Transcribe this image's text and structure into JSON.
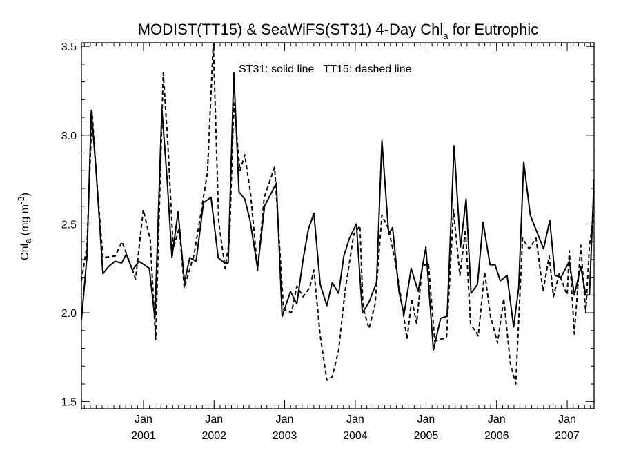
{
  "chart_data": {
    "type": "line",
    "title": {
      "main": "MODIST(TT15) & SeaWiFS(ST31) 4-Day Chl",
      "subscript": "a",
      "suffix": " for Eutrophic"
    },
    "ylabel": {
      "main": "Chl",
      "subscript": "a",
      "unit": " (mg m",
      "superscript": "-3",
      "close": ")"
    },
    "annotation": "ST31: solid line   TT15: dashed line",
    "ylim": [
      1.46,
      3.52
    ],
    "xlim": [
      "2000-02-15",
      "2007-05-20"
    ],
    "y_ticks": [
      {
        "value": 1.5,
        "label": "1.5"
      },
      {
        "value": 2.0,
        "label": "2.0"
      },
      {
        "value": 2.5,
        "label": "2.5"
      },
      {
        "value": 3.0,
        "label": "3.0"
      },
      {
        "value": 3.5,
        "label": "3.5"
      }
    ],
    "y_minor_step": 0.1,
    "x_ticks": [
      {
        "date": "2001-01-01",
        "label": "Jan",
        "year": "2001"
      },
      {
        "date": "2002-01-01",
        "label": "Jan",
        "year": "2002"
      },
      {
        "date": "2003-01-01",
        "label": "Jan",
        "year": "2003"
      },
      {
        "date": "2004-01-01",
        "label": "Jan",
        "year": "2004"
      },
      {
        "date": "2005-01-01",
        "label": "Jan",
        "year": "2005"
      },
      {
        "date": "2006-01-01",
        "label": "Jan",
        "year": "2006"
      },
      {
        "date": "2007-01-01",
        "label": "Jan",
        "year": "2007"
      }
    ],
    "series": [
      {
        "style": "solid",
        "points": [
          [
            "2000-02-15",
            1.96
          ],
          [
            "2000-03-15",
            2.32
          ],
          [
            "2000-04-06",
            3.14
          ],
          [
            "2000-05-01",
            2.8
          ],
          [
            "2000-06-05",
            2.22
          ],
          [
            "2000-07-04",
            2.26
          ],
          [
            "2000-08-07",
            2.29
          ],
          [
            "2000-09-10",
            2.28
          ],
          [
            "2000-10-04",
            2.33
          ],
          [
            "2000-11-05",
            2.24
          ],
          [
            "2000-12-09",
            2.29
          ],
          [
            "2001-01-31",
            2.25
          ],
          [
            "2001-03-01",
            1.97
          ],
          [
            "2001-04-06",
            3.15
          ],
          [
            "2001-05-04",
            2.74
          ],
          [
            "2001-05-28",
            2.31
          ],
          [
            "2001-06-29",
            2.57
          ],
          [
            "2001-08-01",
            2.17
          ],
          [
            "2001-08-28",
            2.31
          ],
          [
            "2001-09-30",
            2.29
          ],
          [
            "2001-11-07",
            2.62
          ],
          [
            "2001-12-16",
            2.65
          ],
          [
            "2002-01-22",
            2.31
          ],
          [
            "2002-02-24",
            2.28
          ],
          [
            "2002-03-15",
            2.28
          ],
          [
            "2002-04-13",
            3.35
          ],
          [
            "2002-05-10",
            2.68
          ],
          [
            "2002-06-09",
            2.64
          ],
          [
            "2002-07-06",
            2.52
          ],
          [
            "2002-08-14",
            2.25
          ],
          [
            "2002-09-19",
            2.6
          ],
          [
            "2002-11-19",
            2.73
          ],
          [
            "2002-12-19",
            1.98
          ],
          [
            "2003-01-31",
            2.12
          ],
          [
            "2003-03-05",
            2.05
          ],
          [
            "2003-04-06",
            2.3
          ],
          [
            "2003-05-04",
            2.47
          ],
          [
            "2003-06-01",
            2.56
          ],
          [
            "2003-07-04",
            2.16
          ],
          [
            "2003-08-07",
            2.04
          ],
          [
            "2003-09-04",
            2.17
          ],
          [
            "2003-10-07",
            2.11
          ],
          [
            "2003-11-03",
            2.32
          ],
          [
            "2003-12-02",
            2.42
          ],
          [
            "2004-01-07",
            2.5
          ],
          [
            "2004-02-07",
            2.0
          ],
          [
            "2004-03-12",
            2.06
          ],
          [
            "2004-04-20",
            2.17
          ],
          [
            "2004-05-18",
            2.97
          ],
          [
            "2004-06-22",
            2.44
          ],
          [
            "2004-07-12",
            2.48
          ],
          [
            "2004-08-14",
            2.12
          ],
          [
            "2004-09-09",
            1.99
          ],
          [
            "2004-10-16",
            2.25
          ],
          [
            "2004-11-21",
            2.12
          ],
          [
            "2004-12-31",
            2.37
          ],
          [
            "2005-02-08",
            1.79
          ],
          [
            "2005-03-18",
            1.97
          ],
          [
            "2005-04-20",
            1.98
          ],
          [
            "2005-05-26",
            2.94
          ],
          [
            "2005-06-28",
            2.37
          ],
          [
            "2005-07-27",
            2.64
          ],
          [
            "2005-08-22",
            2.11
          ],
          [
            "2005-09-24",
            2.16
          ],
          [
            "2005-10-23",
            2.51
          ],
          [
            "2005-11-28",
            2.27
          ],
          [
            "2005-12-24",
            2.27
          ],
          [
            "2006-01-20",
            2.18
          ],
          [
            "2006-02-24",
            2.21
          ],
          [
            "2006-03-30",
            1.92
          ],
          [
            "2006-04-25",
            2.14
          ],
          [
            "2006-05-21",
            2.85
          ],
          [
            "2006-06-24",
            2.55
          ],
          [
            "2006-07-30",
            2.45
          ],
          [
            "2006-09-01",
            2.36
          ],
          [
            "2006-10-03",
            2.52
          ],
          [
            "2006-10-30",
            2.21
          ],
          [
            "2006-11-30",
            2.2
          ],
          [
            "2007-01-12",
            2.29
          ],
          [
            "2007-02-07",
            2.1
          ],
          [
            "2007-03-12",
            2.26
          ],
          [
            "2007-04-07",
            2.1
          ],
          [
            "2007-04-26",
            2.1
          ],
          [
            "2007-05-20",
            2.75
          ]
        ]
      },
      {
        "style": "dashed",
        "points": [
          [
            "2000-02-15",
            2.18
          ],
          [
            "2000-03-15",
            2.38
          ],
          [
            "2000-04-10",
            3.13
          ],
          [
            "2000-05-04",
            2.75
          ],
          [
            "2000-06-05",
            2.31
          ],
          [
            "2000-08-08",
            2.32
          ],
          [
            "2000-09-12",
            2.4
          ],
          [
            "2000-10-16",
            2.3
          ],
          [
            "2000-11-21",
            2.19
          ],
          [
            "2000-12-31",
            2.58
          ],
          [
            "2001-02-05",
            2.41
          ],
          [
            "2001-03-05",
            1.85
          ],
          [
            "2001-04-13",
            3.35
          ],
          [
            "2001-05-07",
            2.95
          ],
          [
            "2001-06-04",
            2.36
          ],
          [
            "2001-07-05",
            2.48
          ],
          [
            "2001-07-31",
            2.14
          ],
          [
            "2001-09-20",
            2.33
          ],
          [
            "2001-11-28",
            2.79
          ],
          [
            "2001-12-28",
            3.52
          ],
          [
            "2002-01-25",
            2.51
          ],
          [
            "2002-02-27",
            2.25
          ],
          [
            "2002-03-22",
            2.42
          ],
          [
            "2002-04-13",
            3.18
          ],
          [
            "2002-05-15",
            2.8
          ],
          [
            "2002-06-09",
            2.89
          ],
          [
            "2002-07-09",
            2.67
          ],
          [
            "2002-08-14",
            2.24
          ],
          [
            "2002-09-17",
            2.65
          ],
          [
            "2002-11-10",
            2.82
          ],
          [
            "2002-12-26",
            2.02
          ],
          [
            "2003-02-05",
            2.0
          ],
          [
            "2003-03-05",
            2.15
          ],
          [
            "2003-04-06",
            2.09
          ],
          [
            "2003-05-10",
            2.14
          ],
          [
            "2003-06-01",
            2.24
          ],
          [
            "2003-07-04",
            1.87
          ],
          [
            "2003-08-07",
            1.62
          ],
          [
            "2003-09-04",
            1.64
          ],
          [
            "2003-10-07",
            1.79
          ],
          [
            "2003-11-09",
            2.12
          ],
          [
            "2003-12-24",
            2.44
          ],
          [
            "2004-01-25",
            2.49
          ],
          [
            "2004-02-10",
            2.03
          ],
          [
            "2004-03-12",
            1.91
          ],
          [
            "2004-04-13",
            2.05
          ],
          [
            "2004-05-18",
            2.55
          ],
          [
            "2004-06-22",
            2.47
          ],
          [
            "2004-07-27",
            2.28
          ],
          [
            "2004-08-27",
            2.07
          ],
          [
            "2004-09-25",
            1.85
          ],
          [
            "2004-10-19",
            2.08
          ],
          [
            "2004-11-13",
            1.94
          ],
          [
            "2004-12-13",
            2.26
          ],
          [
            "2005-01-13",
            2.28
          ],
          [
            "2005-02-15",
            1.84
          ],
          [
            "2005-03-15",
            1.85
          ],
          [
            "2005-04-17",
            1.86
          ],
          [
            "2005-05-23",
            2.58
          ],
          [
            "2005-06-25",
            2.21
          ],
          [
            "2005-07-24",
            2.47
          ],
          [
            "2005-08-19",
            1.94
          ],
          [
            "2005-09-28",
            1.87
          ],
          [
            "2005-10-31",
            2.23
          ],
          [
            "2005-11-30",
            1.98
          ],
          [
            "2006-01-06",
            1.83
          ],
          [
            "2006-02-07",
            2.08
          ],
          [
            "2006-03-12",
            1.72
          ],
          [
            "2006-04-10",
            1.6
          ],
          [
            "2006-05-15",
            2.42
          ],
          [
            "2006-06-18",
            2.36
          ],
          [
            "2006-07-24",
            2.42
          ],
          [
            "2006-08-29",
            2.12
          ],
          [
            "2006-09-30",
            2.32
          ],
          [
            "2006-10-22",
            2.09
          ],
          [
            "2006-11-20",
            2.22
          ],
          [
            "2007-01-01",
            2.1
          ],
          [
            "2007-01-12",
            2.35
          ],
          [
            "2007-02-07",
            1.88
          ],
          [
            "2007-03-12",
            2.38
          ],
          [
            "2007-04-07",
            2.0
          ],
          [
            "2007-04-26",
            2.38
          ],
          [
            "2007-05-20",
            2.56
          ]
        ]
      }
    ]
  }
}
